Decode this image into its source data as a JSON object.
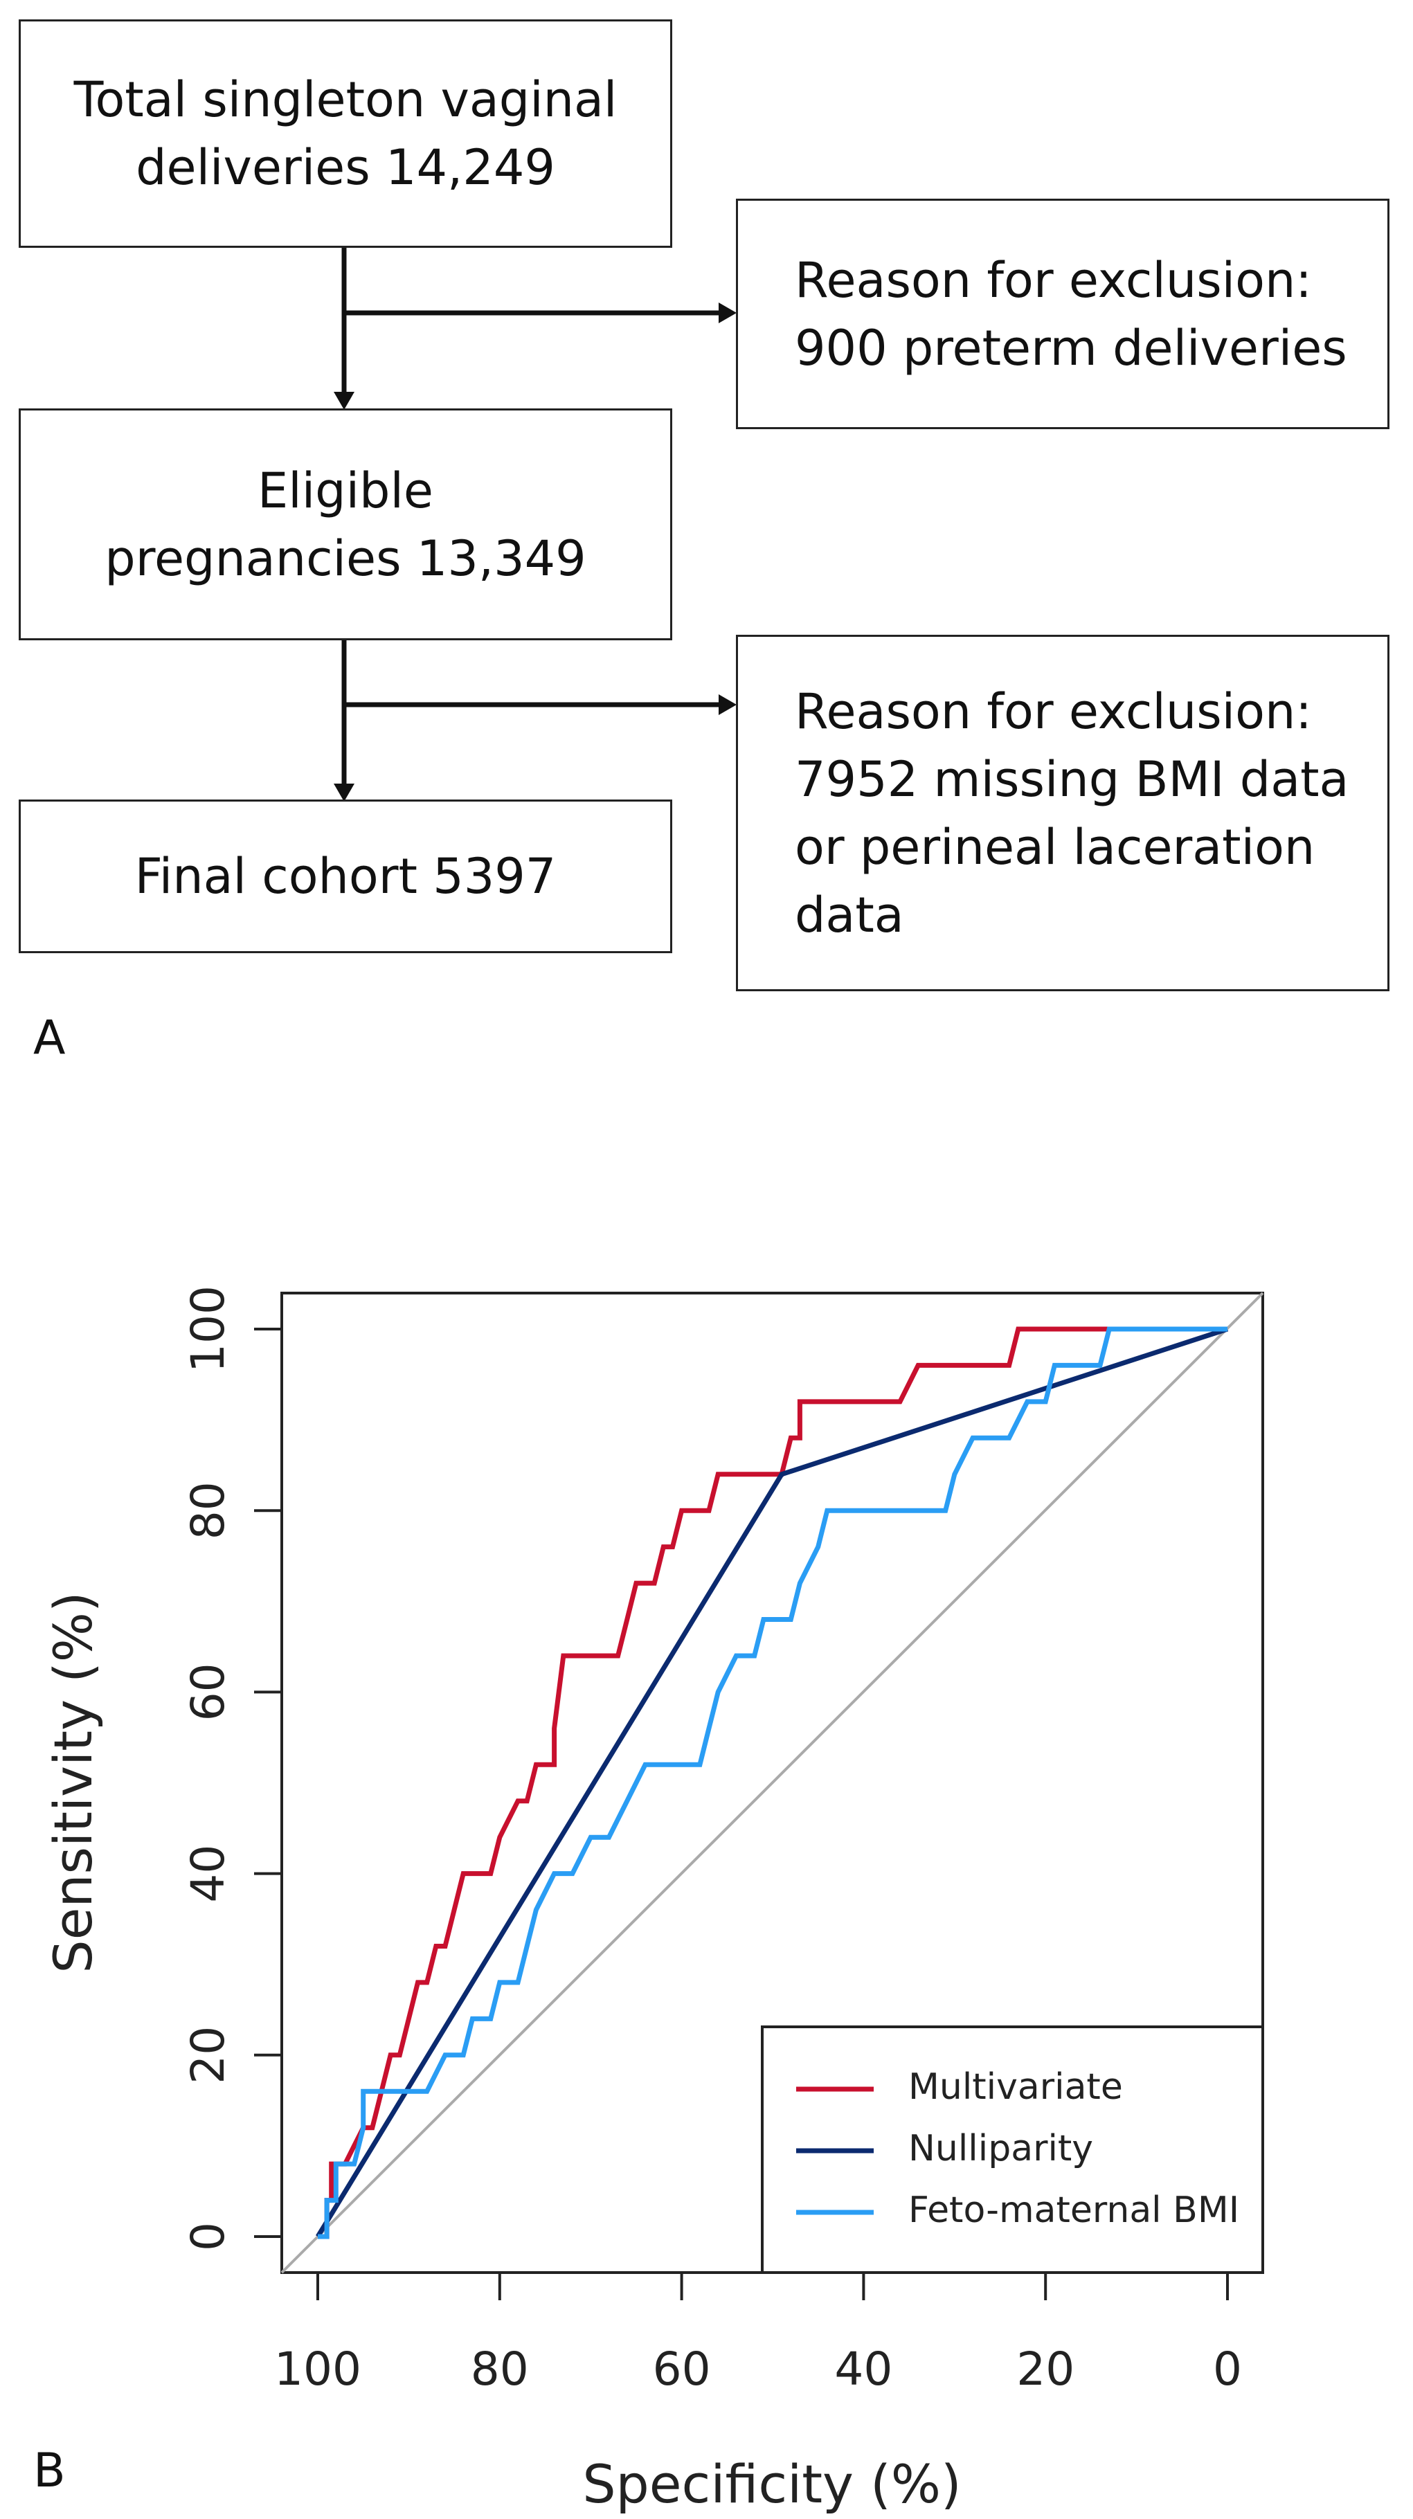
{
  "flowchart": {
    "total": "Total singleton vaginal\ndeliveries 14,249",
    "exclusion_1": "Reason for exclusion:\n900 preterm deliveries",
    "eligible": "Eligible\npregnancies 13,349",
    "exclusion_2": "Reason for exclusion:\n7952 missing BMI data\nor perineal laceration\ndata",
    "final": "Final cohort 5397",
    "panel_label": "A"
  },
  "chart_data": {
    "type": "line",
    "panel_label": "B",
    "xlabel": "Specificity (%)",
    "ylabel": "Sensitivity (%)",
    "xlim": [
      100,
      0
    ],
    "ylim": [
      0,
      100
    ],
    "x_ticks": [
      100,
      80,
      60,
      40,
      20,
      0
    ],
    "y_ticks": [
      0,
      20,
      40,
      60,
      80,
      100
    ],
    "legend_position": "bottom-right",
    "colors": {
      "Multivariate": "#c8102e",
      "Nulliparity": "#0b2a6f",
      "Feto-maternal BMI": "#2a9df4",
      "reference": "#aaaaaa"
    },
    "series": [
      {
        "name": "Multivariate",
        "points": [
          [
            100,
            0
          ],
          [
            99,
            0
          ],
          [
            99,
            4
          ],
          [
            98.5,
            4
          ],
          [
            98.5,
            8
          ],
          [
            97,
            8
          ],
          [
            95,
            12
          ],
          [
            94,
            12
          ],
          [
            93,
            16
          ],
          [
            92,
            20
          ],
          [
            91,
            20
          ],
          [
            90,
            24
          ],
          [
            89,
            28
          ],
          [
            88,
            28
          ],
          [
            87,
            32
          ],
          [
            86,
            32
          ],
          [
            85,
            36
          ],
          [
            84,
            40
          ],
          [
            81,
            40
          ],
          [
            80,
            44
          ],
          [
            78,
            48
          ],
          [
            77,
            48
          ],
          [
            76,
            52
          ],
          [
            74,
            52
          ],
          [
            74,
            56
          ],
          [
            73,
            64
          ],
          [
            67,
            64
          ],
          [
            66,
            68
          ],
          [
            65,
            72
          ],
          [
            63,
            72
          ],
          [
            62,
            76
          ],
          [
            61,
            76
          ],
          [
            60,
            80
          ],
          [
            57,
            80
          ],
          [
            56,
            84
          ],
          [
            49,
            84
          ],
          [
            48,
            88
          ],
          [
            47,
            88
          ],
          [
            47,
            92
          ],
          [
            36,
            92
          ],
          [
            34,
            96
          ],
          [
            24,
            96
          ],
          [
            23,
            100
          ],
          [
            12,
            100
          ]
        ]
      },
      {
        "name": "Nulliparity",
        "points": [
          [
            100,
            0
          ],
          [
            49,
            84
          ],
          [
            0,
            100
          ]
        ]
      },
      {
        "name": "Feto-maternal BMI",
        "points": [
          [
            100,
            0
          ],
          [
            99,
            0
          ],
          [
            99,
            4
          ],
          [
            98,
            4
          ],
          [
            98,
            8
          ],
          [
            96,
            8
          ],
          [
            95,
            12
          ],
          [
            95,
            16
          ],
          [
            88,
            16
          ],
          [
            86,
            20
          ],
          [
            84,
            20
          ],
          [
            83,
            24
          ],
          [
            81,
            24
          ],
          [
            80,
            28
          ],
          [
            78,
            28
          ],
          [
            77,
            32
          ],
          [
            76,
            36
          ],
          [
            74,
            40
          ],
          [
            72,
            40
          ],
          [
            70,
            44
          ],
          [
            68,
            44
          ],
          [
            66,
            48
          ],
          [
            64,
            52
          ],
          [
            58,
            52
          ],
          [
            57,
            56
          ],
          [
            56,
            60
          ],
          [
            54,
            64
          ],
          [
            52,
            64
          ],
          [
            51,
            68
          ],
          [
            48,
            68
          ],
          [
            47,
            72
          ],
          [
            45,
            76
          ],
          [
            44,
            80
          ],
          [
            31,
            80
          ],
          [
            30,
            84
          ],
          [
            28,
            88
          ],
          [
            24,
            88
          ],
          [
            22,
            92
          ],
          [
            20,
            92
          ],
          [
            19,
            96
          ],
          [
            14,
            96
          ],
          [
            13,
            100
          ],
          [
            0,
            100
          ]
        ]
      }
    ]
  }
}
